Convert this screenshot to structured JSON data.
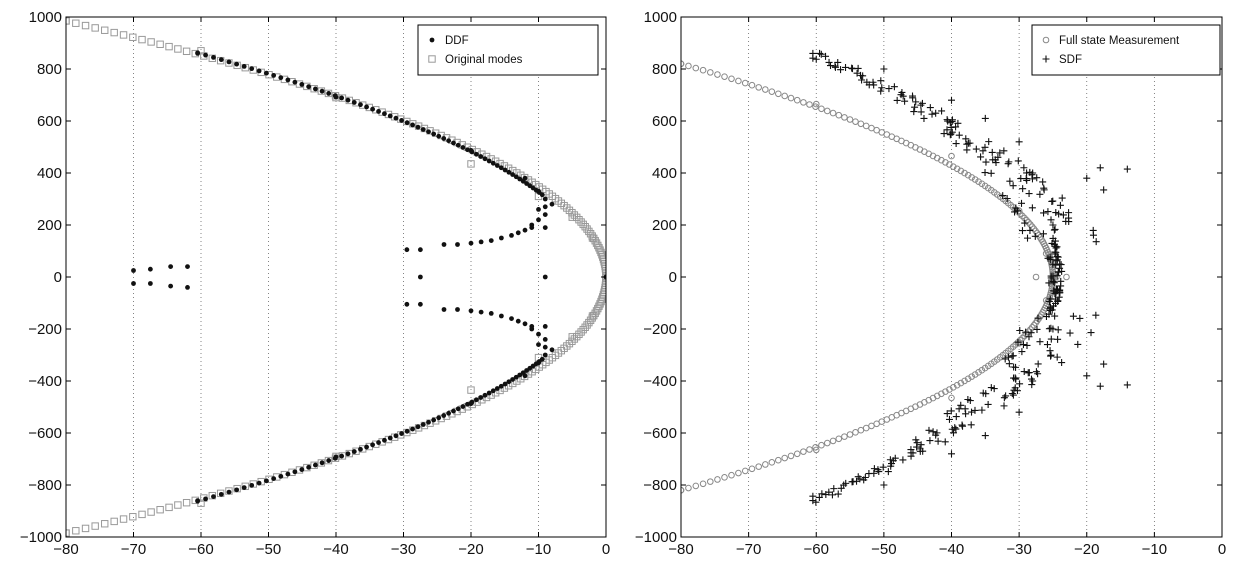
{
  "chart_data": [
    {
      "type": "scatter",
      "panel": "left",
      "title": "",
      "xlabel": "",
      "ylabel": "",
      "xlim": [
        -80,
        0
      ],
      "ylim": [
        -1000,
        1000
      ],
      "x_ticks": [
        -80,
        -70,
        -60,
        -50,
        -40,
        -30,
        -20,
        -10,
        0
      ],
      "y_ticks": [
        -1000,
        -800,
        -600,
        -400,
        -200,
        0,
        200,
        400,
        600,
        800,
        1000
      ],
      "x_tick_labels": [
        "−80",
        "−70",
        "−60",
        "−50",
        "−40",
        "−30",
        "−20",
        "−10",
        "0"
      ],
      "y_tick_labels": [
        "−1000",
        "−800",
        "−600",
        "−400",
        "−200",
        "0",
        "200",
        "400",
        "600",
        "800",
        "1000"
      ],
      "grid": "vertical dotted",
      "legend_position": "top-right",
      "series": [
        {
          "name": "Original modes",
          "marker": "square",
          "color": "#999999",
          "curve": {
            "description": "parabola x = -k*y^2",
            "y_range": [
              -985,
              985
            ],
            "count": 220
          },
          "points": [
            [
              -80,
              985
            ],
            [
              -60,
              870
            ],
            [
              -40,
              690
            ],
            [
              -20,
              435
            ],
            [
              -10,
              310
            ],
            [
              -5,
              230
            ],
            [
              -2,
              150
            ],
            [
              0,
              0
            ],
            [
              -2,
              -150
            ],
            [
              -5,
              -230
            ],
            [
              -10,
              -310
            ],
            [
              -20,
              -435
            ],
            [
              -40,
              -690
            ],
            [
              -60,
              -870
            ],
            [
              -80,
              -985
            ]
          ]
        },
        {
          "name": "DDF",
          "marker": "dot",
          "color": "#111111",
          "curve": {
            "description": "dense branch along parabola",
            "y_range": [
              -862,
              862
            ],
            "count": 200
          },
          "points": [
            [
              -60.5,
              860
            ],
            [
              -40,
              692
            ],
            [
              -20,
              487
            ],
            [
              -12,
              380
            ],
            [
              -10,
              330
            ],
            [
              -9,
              300
            ],
            [
              -10,
              260
            ],
            [
              -9,
              240
            ],
            [
              -10,
              220
            ],
            [
              -11,
              200
            ],
            [
              -9,
              190
            ],
            [
              -8,
              280
            ],
            [
              -9,
              270
            ],
            [
              -60.5,
              -860
            ],
            [
              -40,
              -692
            ],
            [
              -20,
              -487
            ],
            [
              -12,
              -380
            ],
            [
              -10,
              -330
            ],
            [
              -9,
              -300
            ],
            [
              -10,
              -260
            ],
            [
              -9,
              -240
            ],
            [
              -10,
              -220
            ],
            [
              -11,
              -200
            ],
            [
              -9,
              -190
            ],
            [
              -8,
              -280
            ],
            [
              -9,
              -270
            ],
            [
              -70,
              25
            ],
            [
              -70,
              -25
            ],
            [
              -67.5,
              30
            ],
            [
              -67.5,
              -25
            ],
            [
              -64.5,
              40
            ],
            [
              -64.5,
              -35
            ],
            [
              -62,
              40
            ],
            [
              -62,
              -40
            ],
            [
              -29.5,
              105
            ],
            [
              -29.5,
              -105
            ],
            [
              -27.5,
              105
            ],
            [
              -27.5,
              0
            ],
            [
              -27.5,
              -105
            ],
            [
              -24,
              125
            ],
            [
              -22,
              125
            ],
            [
              -20,
              130
            ],
            [
              -18.5,
              135
            ],
            [
              -17,
              140
            ],
            [
              -15.5,
              150
            ],
            [
              -14,
              160
            ],
            [
              -13,
              170
            ],
            [
              -12,
              180
            ],
            [
              -11,
              190
            ],
            [
              -24,
              -125
            ],
            [
              -22,
              -125
            ],
            [
              -20,
              -130
            ],
            [
              -18.5,
              -135
            ],
            [
              -17,
              -140
            ],
            [
              -15.5,
              -150
            ],
            [
              -14,
              -160
            ],
            [
              -13,
              -170
            ],
            [
              -12,
              -180
            ],
            [
              -11,
              -190
            ],
            [
              -9,
              0
            ],
            [
              0,
              0
            ]
          ]
        }
      ]
    },
    {
      "type": "scatter",
      "panel": "right",
      "title": "",
      "xlabel": "",
      "ylabel": "",
      "xlim": [
        -80,
        0
      ],
      "ylim": [
        -1000,
        1000
      ],
      "x_ticks": [
        -80,
        -70,
        -60,
        -50,
        -40,
        -30,
        -20,
        -10,
        0
      ],
      "y_ticks": [
        -1000,
        -800,
        -600,
        -400,
        -200,
        0,
        200,
        400,
        600,
        800,
        1000
      ],
      "x_tick_labels": [
        "−80",
        "−70",
        "−60",
        "−50",
        "−40",
        "−30",
        "−20",
        "−10",
        "0"
      ],
      "y_tick_labels": [
        "−1000",
        "−800",
        "−600",
        "−400",
        "−200",
        "0",
        "200",
        "400",
        "600",
        "800",
        "1000"
      ],
      "grid": "vertical dotted",
      "legend_position": "top-right",
      "series": [
        {
          "name": "Full state Measurement",
          "marker": "circle",
          "color": "#888888",
          "curve": {
            "description": "parabola vertex near x=-25",
            "y_range": [
              -820,
              820
            ],
            "count": 200
          },
          "points": [
            [
              -80,
              820
            ],
            [
              -60,
              665
            ],
            [
              -40,
              465
            ],
            [
              -30,
              255
            ],
            [
              -26,
              90
            ],
            [
              -25,
              0
            ],
            [
              -26,
              -90
            ],
            [
              -30,
              -255
            ],
            [
              -40,
              -465
            ],
            [
              -60,
              -665
            ],
            [
              -80,
              -820
            ],
            [
              -27.5,
              0
            ],
            [
              -23,
              0
            ],
            [
              -24.5,
              0
            ]
          ]
        },
        {
          "name": "SDF",
          "marker": "plus",
          "color": "#111111",
          "curve": {
            "description": "scattered band around branch",
            "y_range": [
              -860,
              860
            ],
            "count": 320
          },
          "points": [
            [
              -60.5,
              860
            ],
            [
              -50,
              800
            ],
            [
              -40,
              680
            ],
            [
              -35,
              610
            ],
            [
              -30,
              520
            ],
            [
              -28,
              400
            ],
            [
              -25,
              200
            ],
            [
              -24,
              50
            ],
            [
              -20,
              380
            ],
            [
              -18,
              420
            ],
            [
              -14,
              415
            ],
            [
              -17.5,
              335
            ],
            [
              -60.5,
              -860
            ],
            [
              -50,
              -800
            ],
            [
              -40,
              -680
            ],
            [
              -35,
              -610
            ],
            [
              -30,
              -520
            ],
            [
              -28,
              -400
            ],
            [
              -25,
              -200
            ],
            [
              -24,
              -50
            ],
            [
              -20,
              -380
            ],
            [
              -18,
              -420
            ],
            [
              -14,
              -415
            ],
            [
              -17.5,
              -335
            ]
          ]
        }
      ]
    }
  ],
  "legends": {
    "left": {
      "entries": [
        "DDF",
        "Original modes"
      ]
    },
    "right": {
      "entries": [
        "Full state Measurement",
        "SDF"
      ]
    }
  },
  "colors": {
    "primary_marker": "#111111",
    "gray_marker": "#999999",
    "axis": "#000000",
    "grid": "#666666"
  }
}
